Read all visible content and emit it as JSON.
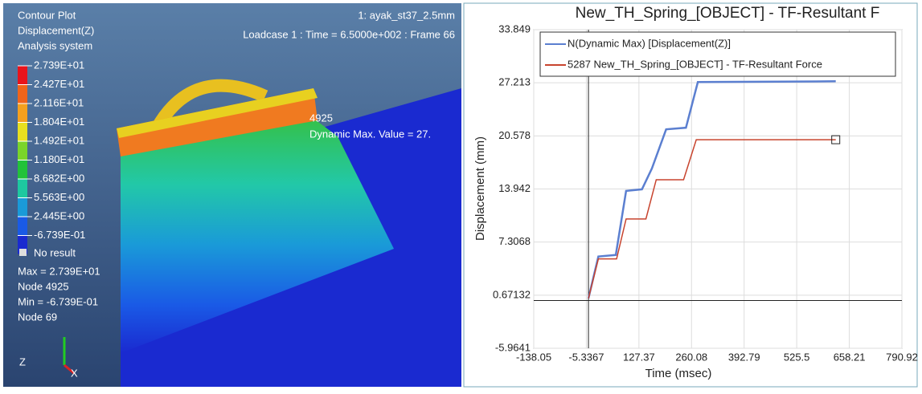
{
  "viewport": {
    "title_lines": [
      "Contour Plot",
      "Displacement(Z)",
      "Analysis system"
    ],
    "model": "1: ayak_st37_2.5mm",
    "loadcase": "Loadcase 1 : Time = 6.5000e+002 : Frame 66",
    "legend": [
      {
        "label": "2.739E+01",
        "color": "#e8141c"
      },
      {
        "label": "2.427E+01",
        "color": "#f0641a"
      },
      {
        "label": "2.116E+01",
        "color": "#f5a01e"
      },
      {
        "label": "1.804E+01",
        "color": "#e8e020"
      },
      {
        "label": "1.492E+01",
        "color": "#7ad42a"
      },
      {
        "label": "1.180E+01",
        "color": "#22c23a"
      },
      {
        "label": "8.682E+00",
        "color": "#1ec8a0"
      },
      {
        "label": "5.563E+00",
        "color": "#1a9ad8"
      },
      {
        "label": "2.445E+00",
        "color": "#1a5ae6"
      },
      {
        "label": "-6.739E-01",
        "color": "#1a2ad0"
      }
    ],
    "no_result": "No result",
    "stats": [
      "Max = 2.739E+01",
      "Node 4925",
      "Min = -6.739E-01",
      "Node 69"
    ],
    "node_label": "4925",
    "max_label": "Dynamic Max. Value =  27.",
    "axis_z": "Z",
    "axis_x": "X"
  },
  "chart_data": {
    "type": "line",
    "title": "New_TH_Spring_[OBJECT] - TF-Resultant F",
    "x_label": "Time (msec)",
    "y_label": "Displacement (mm)",
    "xlim": [
      -138.05,
      790.92
    ],
    "ylim": [
      -5.9641,
      33.849
    ],
    "xticks": [
      -138.05,
      -5.3367,
      127.37,
      260.08,
      392.79,
      525.5,
      658.21,
      790.92
    ],
    "yticks": [
      -5.9641,
      0.67132,
      7.3068,
      13.942,
      20.578,
      27.213,
      33.849
    ],
    "grid": true,
    "series": [
      {
        "name": "N(Dynamic Max) [Displacement(Z)]",
        "color": "#5b7fd0",
        "x": [
          0,
          25,
          69,
          95,
          135,
          160,
          196,
          246,
          276,
          624
        ],
        "values": [
          0.27,
          5.5,
          5.7,
          13.7,
          13.9,
          16.5,
          21.4,
          21.6,
          27.3,
          27.4
        ]
      },
      {
        "name": "5287 New_TH_Spring_[OBJECT] - TF-Resultant Force",
        "color": "#c8442e",
        "x": [
          0,
          25,
          71,
          95,
          145,
          171,
          240,
          272,
          624
        ],
        "values": [
          0.27,
          5.2,
          5.2,
          10.2,
          10.2,
          15.1,
          15.1,
          20.1,
          20.1
        ]
      }
    ]
  }
}
